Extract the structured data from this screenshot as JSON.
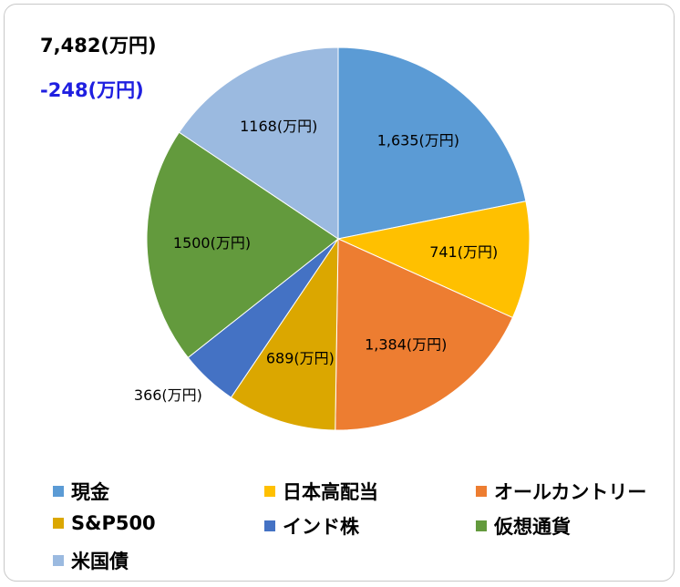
{
  "header": {
    "total": "7,482(万円)",
    "change": "-248(万円)"
  },
  "colors": {
    "change_text": "#1f1fe0",
    "frame_border": "#c8c8c8"
  },
  "chart_data": {
    "type": "pie",
    "title": "",
    "start_angle": "top (12 o'clock)",
    "direction": "clockwise",
    "legend_position": "bottom",
    "unit": "万円",
    "categories": [
      "現金",
      "日本高配当",
      "オールカントリー",
      "S&P500",
      "インド株",
      "仮想通貨",
      "米国債"
    ],
    "values": [
      1635,
      741,
      1384,
      689,
      366,
      1500,
      1168
    ],
    "data_labels": [
      "1,635(万円)",
      "741(万円)",
      "1,384(万円)",
      "689(万円)",
      "366(万円)",
      "1500(万円)",
      "1168(万円)"
    ],
    "colors": [
      "#5b9bd5",
      "#ffc000",
      "#ed7d31",
      "#dba700",
      "#4472c4",
      "#639a3d",
      "#9bbae0"
    ],
    "label_placement": [
      "inside",
      "inside",
      "inside",
      "inside",
      "outside",
      "inside",
      "inside"
    ]
  }
}
